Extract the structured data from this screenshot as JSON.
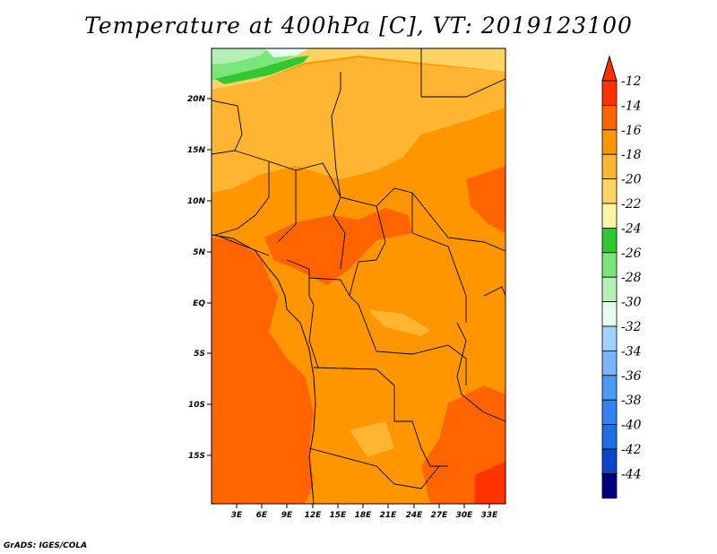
{
  "title": "Temperature at 400hPa [C], VT: 2019123100",
  "credit": "GrADS: IGES/COLA",
  "map": {
    "lat_labels": [
      "20N",
      "15N",
      "10N",
      "5N",
      "EQ",
      "5S",
      "10S",
      "15S"
    ],
    "lon_labels": [
      "3E",
      "6E",
      "9E",
      "12E",
      "15E",
      "18E",
      "21E",
      "24E",
      "27E",
      "30E",
      "33E"
    ]
  },
  "colorbar": {
    "labels": [
      "-12",
      "-14",
      "-16",
      "-18",
      "-20",
      "-22",
      "-24",
      "-26",
      "-28",
      "-30",
      "-32",
      "-34",
      "-36",
      "-38",
      "-40",
      "-42",
      "-44"
    ],
    "colors": [
      "#ff3200",
      "#ff6400",
      "#ff9600",
      "#ffb432",
      "#ffd264",
      "#fff5a0",
      "#32c832",
      "#78e678",
      "#b4f0b4",
      "#e6fff0",
      "#a0d2ff",
      "#78b4ff",
      "#4b9bf0",
      "#3282f0",
      "#1e6ee6",
      "#0a46c8",
      "#000080"
    ],
    "top_color": "#ff3200",
    "bottom_color": "#e6e6ff"
  },
  "legend_colors": {
    "boundary": "#000000",
    "ocean_warm": "#ff6400"
  }
}
